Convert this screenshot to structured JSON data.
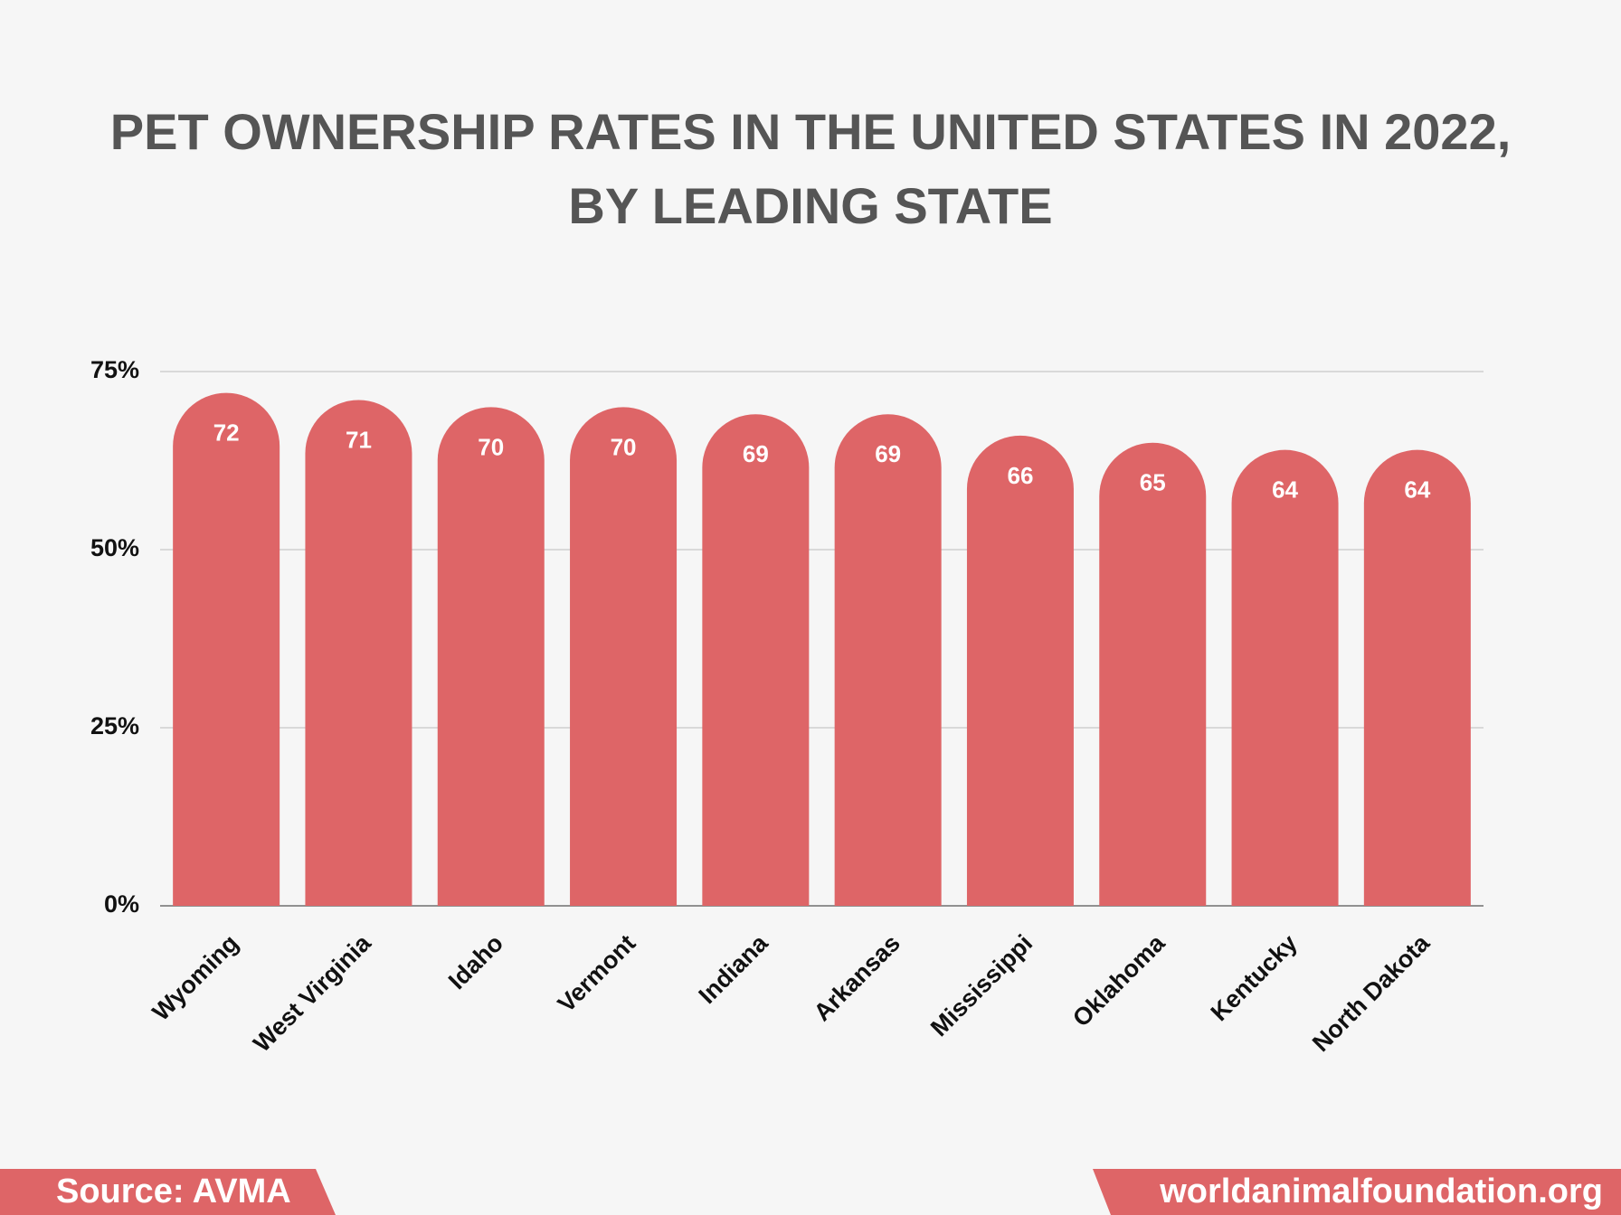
{
  "chart_data": {
    "type": "bar",
    "title": "PET OWNERSHIP RATES IN THE UNITED STATES IN 2022, BY LEADING STATE",
    "categories": [
      "Wyoming",
      "West Virginia",
      "Idaho",
      "Vermont",
      "Indiana",
      "Arkansas",
      "Mississippi",
      "Oklahoma",
      "Kentucky",
      "North Dakota"
    ],
    "values": [
      72,
      71,
      70,
      70,
      69,
      69,
      66,
      65,
      64,
      64
    ],
    "color": "#de6567",
    "ylim": [
      0,
      75
    ],
    "yticks": [
      {
        "value": 0,
        "label": "0%"
      },
      {
        "value": 25,
        "label": "25%"
      },
      {
        "value": 50,
        "label": "50%"
      },
      {
        "value": 75,
        "label": "75%"
      }
    ],
    "grid": true,
    "source": "Source: AVMA",
    "website": "worldanimalfoundation.org"
  }
}
